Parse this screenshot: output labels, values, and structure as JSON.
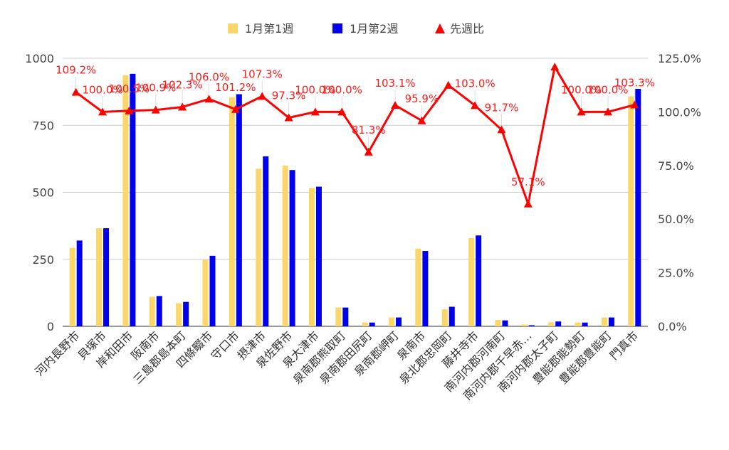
{
  "chart_data": {
    "type": "bar",
    "categories": [
      "河内長野市",
      "貝塚市",
      "岸和田市",
      "阪南市",
      "三島郡島本町",
      "四條畷市",
      "守口市",
      "摂津市",
      "泉佐野市",
      "泉大津市",
      "泉南郡熊取町",
      "泉南郡田尻町",
      "泉南郡岬町",
      "泉南市",
      "泉北郡忠岡町",
      "藤井寺市",
      "南河内郡河南町",
      "南河内郡千早赤…",
      "南河内郡太子町",
      "豊能郡能勢町",
      "豊能郡豊能町",
      "門真市"
    ],
    "series": [
      {
        "name": "1月第1週",
        "type": "bar",
        "axis": "left",
        "color": "#fdd66a",
        "values": [
          293,
          366,
          937,
          110,
          86,
          248,
          855,
          588,
          600,
          516,
          70,
          14,
          33,
          290,
          64,
          329,
          24,
          7,
          15,
          14,
          33,
          858
        ]
      },
      {
        "name": "1月第2週",
        "type": "bar",
        "axis": "left",
        "color": "#0000ee",
        "values": [
          320,
          366,
          942,
          113,
          91,
          263,
          866,
          634,
          583,
          521,
          70,
          14,
          33,
          281,
          73,
          339,
          22,
          4,
          18,
          14,
          33,
          886
        ]
      },
      {
        "name": "先週比",
        "type": "line",
        "axis": "right",
        "color": "#ff0000",
        "values": [
          109.2,
          100.0,
          100.5,
          100.9,
          102.3,
          106.0,
          101.2,
          107.3,
          97.3,
          100.0,
          100.0,
          81.3,
          103.1,
          95.9,
          112.5,
          103.0,
          91.7,
          57.1,
          121.0,
          100.0,
          100.0,
          103.3
        ]
      }
    ],
    "data_labels": [
      "109.2%",
      "100.0%",
      "100.5%",
      "100.9%",
      "102.3%",
      "106.0%",
      "101.2%",
      "107.3%",
      "97.3%",
      "100.0%",
      "100.0%",
      "81.3%",
      "103.1%",
      "95.9%",
      "",
      "103.0%",
      "91.7%",
      "57.1%",
      "",
      "100.0%",
      "100.0%",
      "103.3%"
    ],
    "y_left": {
      "ticks": [
        "0",
        "250",
        "500",
        "750",
        "1000"
      ],
      "range": [
        0,
        1000
      ]
    },
    "y_right": {
      "ticks": [
        "0.0%",
        "25.0%",
        "50.0%",
        "75.0%",
        "100.0%",
        "125.0%"
      ],
      "range": [
        0,
        125
      ]
    },
    "legend_position": "top",
    "grid": true
  }
}
